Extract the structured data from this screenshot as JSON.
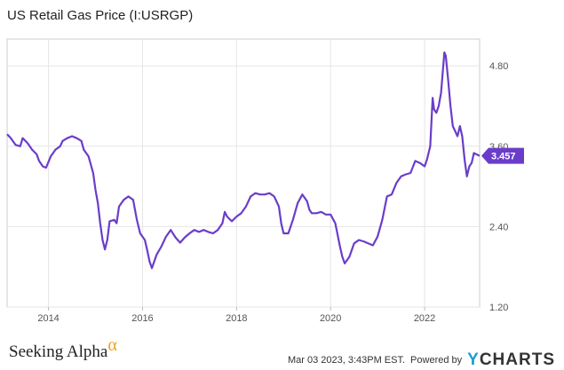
{
  "chart_data": {
    "type": "line",
    "title": "US Retail Gas Price (I:USRGP)",
    "xlabel": "",
    "ylabel": "",
    "x_ticks": [
      "2014",
      "2016",
      "2018",
      "2020",
      "2022"
    ],
    "y_ticks": [
      "1.20",
      "2.40",
      "3.60",
      "4.80"
    ],
    "ylim": [
      1.2,
      5.2
    ],
    "xlim": [
      2013.12,
      2023.17
    ],
    "grid": true,
    "last_value_label": "3.457",
    "series": [
      {
        "color": "#6a3dc9",
        "points": [
          [
            2013.12,
            3.78
          ],
          [
            2013.2,
            3.72
          ],
          [
            2013.3,
            3.62
          ],
          [
            2013.4,
            3.6
          ],
          [
            2013.45,
            3.72
          ],
          [
            2013.55,
            3.65
          ],
          [
            2013.65,
            3.55
          ],
          [
            2013.75,
            3.48
          ],
          [
            2013.8,
            3.38
          ],
          [
            2013.88,
            3.3
          ],
          [
            2013.95,
            3.28
          ],
          [
            2014.05,
            3.45
          ],
          [
            2014.15,
            3.55
          ],
          [
            2014.25,
            3.6
          ],
          [
            2014.3,
            3.68
          ],
          [
            2014.4,
            3.72
          ],
          [
            2014.5,
            3.75
          ],
          [
            2014.6,
            3.72
          ],
          [
            2014.7,
            3.68
          ],
          [
            2014.75,
            3.55
          ],
          [
            2014.85,
            3.45
          ],
          [
            2014.95,
            3.2
          ],
          [
            2015.0,
            2.95
          ],
          [
            2015.05,
            2.75
          ],
          [
            2015.1,
            2.45
          ],
          [
            2015.15,
            2.2
          ],
          [
            2015.2,
            2.06
          ],
          [
            2015.25,
            2.2
          ],
          [
            2015.3,
            2.48
          ],
          [
            2015.4,
            2.5
          ],
          [
            2015.45,
            2.45
          ],
          [
            2015.5,
            2.7
          ],
          [
            2015.6,
            2.8
          ],
          [
            2015.7,
            2.85
          ],
          [
            2015.8,
            2.8
          ],
          [
            2015.88,
            2.5
          ],
          [
            2015.95,
            2.3
          ],
          [
            2016.05,
            2.2
          ],
          [
            2016.1,
            2.05
          ],
          [
            2016.15,
            1.88
          ],
          [
            2016.2,
            1.78
          ],
          [
            2016.3,
            1.98
          ],
          [
            2016.4,
            2.1
          ],
          [
            2016.5,
            2.25
          ],
          [
            2016.6,
            2.35
          ],
          [
            2016.7,
            2.24
          ],
          [
            2016.8,
            2.16
          ],
          [
            2016.9,
            2.24
          ],
          [
            2017.0,
            2.3
          ],
          [
            2017.1,
            2.35
          ],
          [
            2017.2,
            2.32
          ],
          [
            2017.3,
            2.35
          ],
          [
            2017.4,
            2.32
          ],
          [
            2017.5,
            2.3
          ],
          [
            2017.6,
            2.35
          ],
          [
            2017.7,
            2.45
          ],
          [
            2017.75,
            2.62
          ],
          [
            2017.8,
            2.55
          ],
          [
            2017.9,
            2.48
          ],
          [
            2018.0,
            2.55
          ],
          [
            2018.1,
            2.6
          ],
          [
            2018.2,
            2.7
          ],
          [
            2018.3,
            2.85
          ],
          [
            2018.4,
            2.9
          ],
          [
            2018.5,
            2.88
          ],
          [
            2018.6,
            2.88
          ],
          [
            2018.7,
            2.9
          ],
          [
            2018.8,
            2.85
          ],
          [
            2018.9,
            2.7
          ],
          [
            2018.95,
            2.45
          ],
          [
            2019.0,
            2.3
          ],
          [
            2019.1,
            2.3
          ],
          [
            2019.2,
            2.5
          ],
          [
            2019.3,
            2.75
          ],
          [
            2019.4,
            2.88
          ],
          [
            2019.5,
            2.78
          ],
          [
            2019.55,
            2.65
          ],
          [
            2019.6,
            2.6
          ],
          [
            2019.7,
            2.6
          ],
          [
            2019.8,
            2.62
          ],
          [
            2019.9,
            2.58
          ],
          [
            2020.0,
            2.58
          ],
          [
            2020.1,
            2.45
          ],
          [
            2020.2,
            2.1
          ],
          [
            2020.25,
            1.95
          ],
          [
            2020.3,
            1.85
          ],
          [
            2020.4,
            1.95
          ],
          [
            2020.5,
            2.15
          ],
          [
            2020.6,
            2.2
          ],
          [
            2020.7,
            2.18
          ],
          [
            2020.8,
            2.15
          ],
          [
            2020.9,
            2.12
          ],
          [
            2021.0,
            2.25
          ],
          [
            2021.1,
            2.5
          ],
          [
            2021.2,
            2.85
          ],
          [
            2021.3,
            2.88
          ],
          [
            2021.4,
            3.05
          ],
          [
            2021.5,
            3.15
          ],
          [
            2021.6,
            3.18
          ],
          [
            2021.7,
            3.2
          ],
          [
            2021.8,
            3.38
          ],
          [
            2021.9,
            3.35
          ],
          [
            2022.0,
            3.3
          ],
          [
            2022.05,
            3.4
          ],
          [
            2022.12,
            3.6
          ],
          [
            2022.17,
            4.32
          ],
          [
            2022.2,
            4.15
          ],
          [
            2022.25,
            4.1
          ],
          [
            2022.3,
            4.2
          ],
          [
            2022.35,
            4.4
          ],
          [
            2022.42,
            5.0
          ],
          [
            2022.45,
            4.95
          ],
          [
            2022.5,
            4.6
          ],
          [
            2022.55,
            4.2
          ],
          [
            2022.6,
            3.9
          ],
          [
            2022.7,
            3.75
          ],
          [
            2022.75,
            3.9
          ],
          [
            2022.8,
            3.75
          ],
          [
            2022.85,
            3.4
          ],
          [
            2022.9,
            3.15
          ],
          [
            2022.95,
            3.3
          ],
          [
            2023.0,
            3.35
          ],
          [
            2023.05,
            3.5
          ],
          [
            2023.1,
            3.48
          ],
          [
            2023.17,
            3.457
          ]
        ]
      }
    ]
  },
  "branding": {
    "left_text": "Seeking Alpha",
    "alpha_symbol": "α",
    "timestamp": "Mar 03 2023, 3:43PM EST.",
    "powered_by": "Powered by",
    "provider_y": "Y",
    "provider_rest": "CHARTS"
  },
  "colors": {
    "line": "#6a3dc9",
    "label_bg": "#6a3dc9",
    "grid": "#e5e5e5",
    "frame": "#cccccc"
  }
}
